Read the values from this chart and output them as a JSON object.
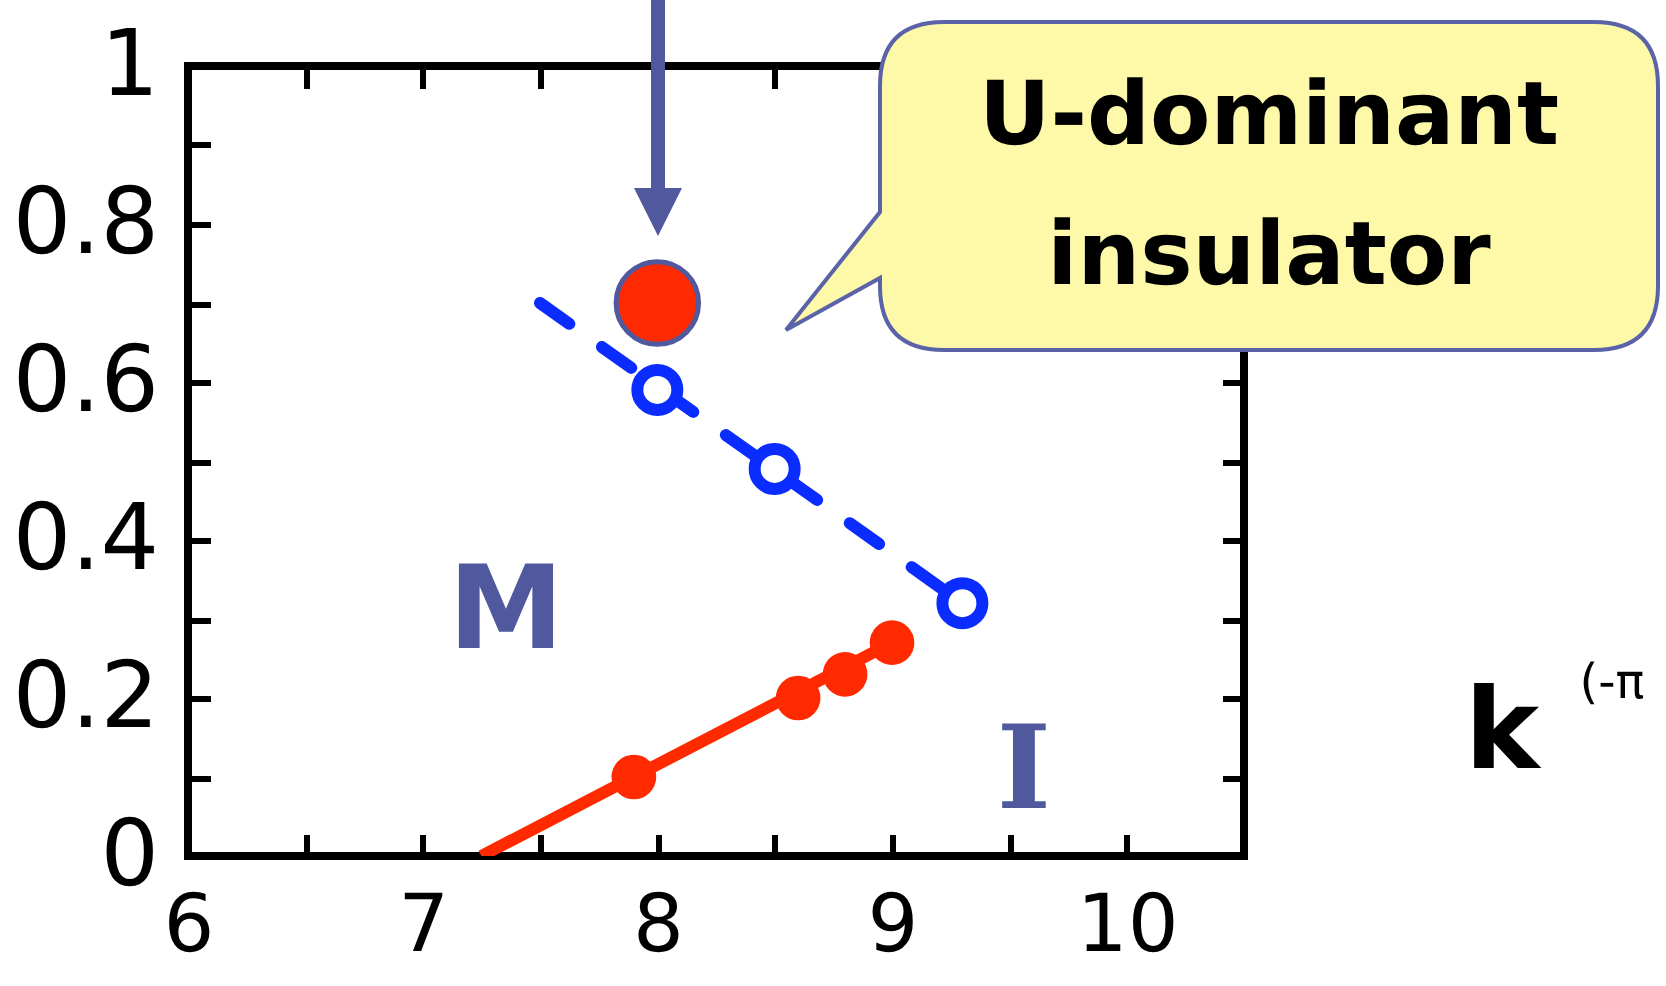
{
  "chart_data": {
    "type": "line",
    "xlim": [
      6,
      10.5
    ],
    "ylim": [
      0,
      1
    ],
    "xticks": [
      6,
      {
        "value": 6.5,
        "label": null
      },
      7,
      {
        "value": 7.5,
        "label": null
      },
      8,
      {
        "value": 8.5,
        "label": null
      },
      9,
      {
        "value": 9.5,
        "label": null
      },
      10
    ],
    "yticks": [
      0,
      {
        "value": 0.1,
        "label": null
      },
      0.2,
      {
        "value": 0.3,
        "label": null
      },
      0.4,
      {
        "value": 0.5,
        "label": null
      },
      0.6,
      {
        "value": 0.7,
        "label": null
      },
      0.8,
      {
        "value": 0.9,
        "label": null
      },
      1
    ],
    "series": [
      {
        "type": "line",
        "color": "#ff2a00",
        "x": [
          7.25,
          9.0
        ],
        "values": [
          0,
          0.27
        ],
        "marker": "none",
        "line_style": "solid"
      },
      {
        "type": "scatter",
        "color": "#ff2a00",
        "x": [
          7.9,
          8.6,
          8.8,
          9.0
        ],
        "values": [
          0.1,
          0.2,
          0.23,
          0.27
        ],
        "marker": "circle"
      },
      {
        "type": "line",
        "color": "#0a2cff",
        "x": [
          7.5,
          9.3
        ],
        "values": [
          0.7,
          0.32
        ],
        "marker": "none",
        "line_style": "dashed"
      },
      {
        "type": "scatter",
        "color": "#0a2cff",
        "x": [
          8.0,
          8.5,
          9.3
        ],
        "values": [
          0.59,
          0.49,
          0.32
        ],
        "marker": "circle"
      },
      {
        "type": "scatter",
        "color": "#ff2a00",
        "x": [
          8.0
        ],
        "values": [
          0.7
        ],
        "marker": "circle"
      }
    ],
    "annotations": [
      "U-dominant insulator",
      "M",
      "I",
      "k",
      "(-π"
    ]
  }
}
